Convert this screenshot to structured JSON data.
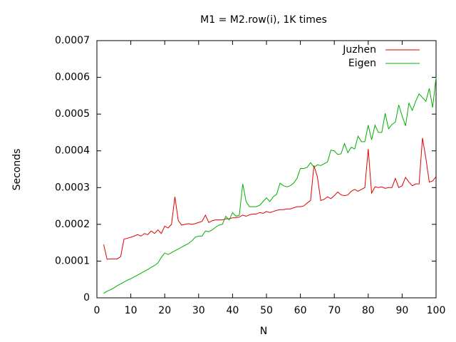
{
  "chart_data": {
    "type": "line",
    "title": "M1 = M2.row(i), 1K times",
    "xlabel": "N",
    "ylabel": "Seconds",
    "xlim": [
      0,
      100
    ],
    "xticks": [
      0,
      10,
      20,
      30,
      40,
      50,
      60,
      70,
      80,
      90,
      100
    ],
    "ylim": [
      0,
      0.0007
    ],
    "yticks": [
      0,
      0.0001,
      0.0002,
      0.0003,
      0.0004,
      0.0005,
      0.0006,
      0.0007
    ],
    "legend": "top-right",
    "x": [
      2,
      3,
      4,
      5,
      6,
      7,
      8,
      9,
      10,
      11,
      12,
      13,
      14,
      15,
      16,
      17,
      18,
      19,
      20,
      21,
      22,
      23,
      24,
      25,
      26,
      27,
      28,
      29,
      30,
      31,
      32,
      33,
      34,
      35,
      36,
      37,
      38,
      39,
      40,
      41,
      42,
      43,
      44,
      45,
      46,
      47,
      48,
      49,
      50,
      51,
      52,
      53,
      54,
      55,
      56,
      57,
      58,
      59,
      60,
      61,
      62,
      63,
      64,
      65,
      66,
      67,
      68,
      69,
      70,
      71,
      72,
      73,
      74,
      75,
      76,
      77,
      78,
      79,
      80,
      81,
      82,
      83,
      84,
      85,
      86,
      87,
      88,
      89,
      90,
      91,
      92,
      93,
      94,
      95,
      96,
      97,
      98,
      99,
      100
    ],
    "series": [
      {
        "name": "Juzhen",
        "color": "#e00000",
        "values": [
          0.000145,
          0.000105,
          0.000106,
          0.000106,
          0.000106,
          0.000112,
          0.00016,
          0.000162,
          0.000165,
          0.000168,
          0.000172,
          0.000168,
          0.000175,
          0.000172,
          0.000182,
          0.000175,
          0.000185,
          0.000175,
          0.000195,
          0.00019,
          0.0002,
          0.000275,
          0.00021,
          0.000198,
          0.0002,
          0.000202,
          0.0002,
          0.000202,
          0.000205,
          0.000208,
          0.000225,
          0.000205,
          0.00021,
          0.000212,
          0.000212,
          0.000212,
          0.000215,
          0.000215,
          0.000218,
          0.000218,
          0.00022,
          0.000225,
          0.000222,
          0.000226,
          0.000228,
          0.000228,
          0.000232,
          0.00023,
          0.000235,
          0.000232,
          0.000235,
          0.000238,
          0.00024,
          0.00024,
          0.000242,
          0.000242,
          0.000245,
          0.000248,
          0.000248,
          0.00025,
          0.000258,
          0.000265,
          0.00036,
          0.00033,
          0.000265,
          0.000268,
          0.000275,
          0.00027,
          0.000278,
          0.000288,
          0.00028,
          0.000278,
          0.00028,
          0.00029,
          0.000295,
          0.00029,
          0.000295,
          0.0003,
          0.000405,
          0.000285,
          0.000302,
          0.0003,
          0.000302,
          0.000298,
          0.0003,
          0.0003,
          0.000325,
          0.0003,
          0.000305,
          0.000328,
          0.000315,
          0.000305,
          0.00031,
          0.00031,
          0.000435,
          0.00038,
          0.000315,
          0.000318,
          0.00033
        ]
      },
      {
        "name": "Eigen",
        "color": "#00b000",
        "values": [
          1.2e-05,
          1.8e-05,
          2.2e-05,
          2.7e-05,
          3.3e-05,
          3.8e-05,
          4.3e-05,
          4.8e-05,
          5.2e-05,
          5.7e-05,
          6.2e-05,
          6.7e-05,
          7.2e-05,
          7.7e-05,
          8.3e-05,
          8.8e-05,
          9.5e-05,
          0.00011,
          0.000122,
          0.000118,
          0.000123,
          0.000128,
          0.000133,
          0.000138,
          0.000143,
          0.000148,
          0.000155,
          0.000165,
          0.000168,
          0.000168,
          0.000182,
          0.00018,
          0.000185,
          0.000192,
          0.000198,
          0.0002,
          0.000222,
          0.000212,
          0.000232,
          0.000222,
          0.000225,
          0.00031,
          0.000262,
          0.000248,
          0.000248,
          0.000248,
          0.000252,
          0.000262,
          0.000272,
          0.000262,
          0.000275,
          0.000282,
          0.000312,
          0.000305,
          0.000302,
          0.000305,
          0.000312,
          0.000325,
          0.000352,
          0.000352,
          0.000355,
          0.000368,
          0.000355,
          0.000362,
          0.00036,
          0.000365,
          0.00037,
          0.000402,
          0.0004,
          0.00039,
          0.000392,
          0.00042,
          0.000395,
          0.00041,
          0.000405,
          0.00044,
          0.000425,
          0.000425,
          0.00047,
          0.00043,
          0.00047,
          0.00045,
          0.00045,
          0.000502,
          0.00046,
          0.000472,
          0.000478,
          0.000525,
          0.000495,
          0.000468,
          0.00053,
          0.00051,
          0.000535,
          0.000555,
          0.000545,
          0.000535,
          0.00057,
          0.000518,
          0.0006
        ]
      }
    ]
  }
}
